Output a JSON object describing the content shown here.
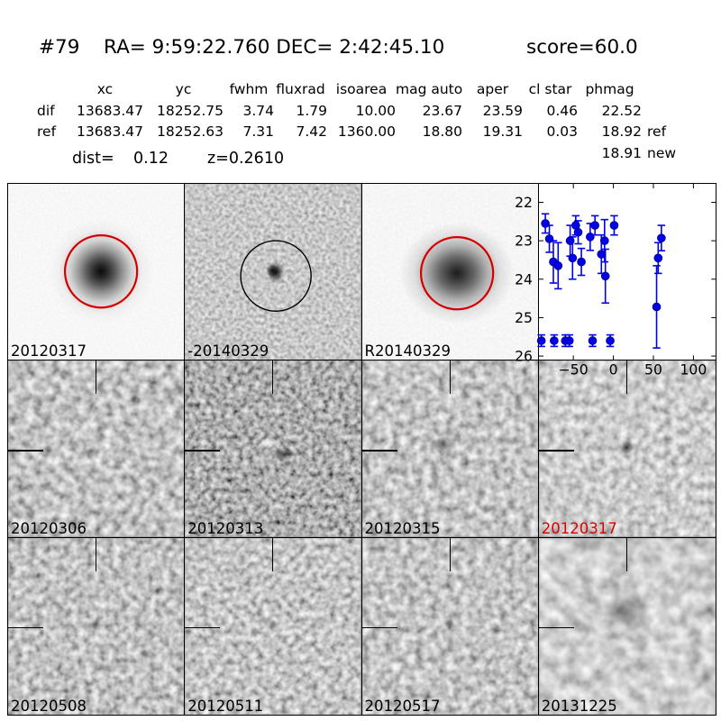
{
  "header": {
    "id": "#79",
    "coords": "RA= 9:59:22.760 DEC= 2:42:45.10",
    "score": "score=60.0"
  },
  "photometry": {
    "columns": [
      "xc",
      "yc",
      "fwhm",
      "fluxrad",
      "isoarea",
      "mag auto",
      "aper",
      "cl star",
      "phmag"
    ],
    "rows": [
      {
        "label": "dif",
        "xc": "13683.47",
        "yc": "18252.75",
        "fwhm": "3.74",
        "fluxrad": "1.79",
        "isoarea": "10.00",
        "mag_auto": "23.67",
        "aper": "23.59",
        "cl_star": "0.46",
        "phmag": "22.52",
        "suffix": ""
      },
      {
        "label": "ref",
        "xc": "13683.47",
        "yc": "18252.63",
        "fwhm": "7.31",
        "fluxrad": "7.42",
        "isoarea": "1360.00",
        "mag_auto": "18.80",
        "aper": "19.31",
        "cl_star": "0.03",
        "phmag": "18.92",
        "suffix": "ref"
      }
    ],
    "extra": {
      "phmag": "18.91",
      "suffix": "new"
    },
    "dist_label": "dist=",
    "dist_value": "0.12",
    "z_value": "z=0.2610"
  },
  "panels": {
    "rows": [
      [
        {
          "kind": "new",
          "label": "20120317",
          "label_color": "#000000",
          "circle_color": "#d40000",
          "feature": "bright-source"
        },
        {
          "kind": "diff",
          "label": "-20140329",
          "label_color": "#000000",
          "circle_color": "#000000",
          "feature": "point-source"
        },
        {
          "kind": "ref",
          "label": "R20140329",
          "label_color": "#000000",
          "circle_color": "#d40000",
          "feature": "bright-source"
        },
        {
          "kind": "lightcurve"
        }
      ],
      [
        {
          "kind": "stamp",
          "label": "20120306",
          "label_color": "#000000",
          "tone": "mid",
          "feature": "none"
        },
        {
          "kind": "stamp",
          "label": "20120313",
          "label_color": "#000000",
          "tone": "dark",
          "feature": "dipole"
        },
        {
          "kind": "stamp",
          "label": "20120315",
          "label_color": "#000000",
          "tone": "mid",
          "feature": "faint-smudge"
        },
        {
          "kind": "stamp",
          "label": "20120317",
          "label_color": "#dd0000",
          "tone": "light",
          "feature": "point-source"
        }
      ],
      [
        {
          "kind": "stamp",
          "label": "20120508",
          "label_color": "#000000",
          "tone": "mid",
          "feature": "faint-dot"
        },
        {
          "kind": "stamp",
          "label": "20120511",
          "label_color": "#000000",
          "tone": "mid",
          "feature": "faint-dot"
        },
        {
          "kind": "stamp",
          "label": "20120517",
          "label_color": "#000000",
          "tone": "mid",
          "feature": "faint-dot"
        },
        {
          "kind": "stamp",
          "label": "20131225",
          "label_color": "#000000",
          "tone": "smooth",
          "feature": "faint-smudge-large"
        }
      ]
    ]
  },
  "chart_data": {
    "type": "scatter",
    "title": "",
    "xlabel": "",
    "ylabel": "",
    "xlim": [
      -93,
      128
    ],
    "ylim": [
      26.1,
      21.52
    ],
    "y_axis_inverted_magnitudes": true,
    "grid": false,
    "xticks": [
      -50,
      0,
      50,
      100
    ],
    "xtick_labels": [
      "−50",
      "0",
      "50",
      "100"
    ],
    "yticks": [
      22,
      23,
      24,
      25,
      26
    ],
    "ytick_labels": [
      "22",
      "23",
      "24",
      "25",
      "26"
    ],
    "series": [
      {
        "name": "detections",
        "marker": "circle",
        "color": "#0202e8",
        "points": [
          {
            "x": -85,
            "y": 22.55,
            "err": 0.25
          },
          {
            "x": -80,
            "y": 22.95,
            "err": 0.35
          },
          {
            "x": -75,
            "y": 23.55,
            "err": 0.55
          },
          {
            "x": -69,
            "y": 23.65,
            "err": 0.6
          },
          {
            "x": -54,
            "y": 23.0,
            "err": 0.4
          },
          {
            "x": -51,
            "y": 23.45,
            "err": 0.55
          },
          {
            "x": -47,
            "y": 22.6,
            "err": 0.25
          },
          {
            "x": -44,
            "y": 22.78,
            "err": 0.3
          },
          {
            "x": -40,
            "y": 23.55,
            "err": 0.35
          },
          {
            "x": -29,
            "y": 22.9,
            "err": 0.35
          },
          {
            "x": -23,
            "y": 22.6,
            "err": 0.25
          },
          {
            "x": -15,
            "y": 23.35,
            "err": 0.5
          },
          {
            "x": -11,
            "y": 23.0,
            "err": 0.55
          },
          {
            "x": -10,
            "y": 23.92,
            "err": 0.7
          },
          {
            "x": 1,
            "y": 22.6,
            "err": 0.25
          },
          {
            "x": 54,
            "y": 24.72,
            "err": 1.07
          },
          {
            "x": 56,
            "y": 23.45,
            "err": 0.4
          },
          {
            "x": 60,
            "y": 22.93,
            "err": 0.33
          }
        ]
      },
      {
        "name": "limits",
        "marker": "circle",
        "color": "#0202e8",
        "points": [
          {
            "x": -90,
            "y": 25.6,
            "err": 0.15
          },
          {
            "x": -74,
            "y": 25.6,
            "err": 0.15
          },
          {
            "x": -60,
            "y": 25.6,
            "err": 0.15
          },
          {
            "x": -55,
            "y": 25.6,
            "err": 0.15
          },
          {
            "x": -26,
            "y": 25.6,
            "err": 0.15
          },
          {
            "x": -4,
            "y": 25.6,
            "err": 0.15
          }
        ]
      }
    ]
  },
  "colors": {
    "accent_red": "#dd0000",
    "point_blue": "#0202e8",
    "circle_red": "#d40000",
    "circle_black": "#000000",
    "axis_black": "#000000"
  }
}
